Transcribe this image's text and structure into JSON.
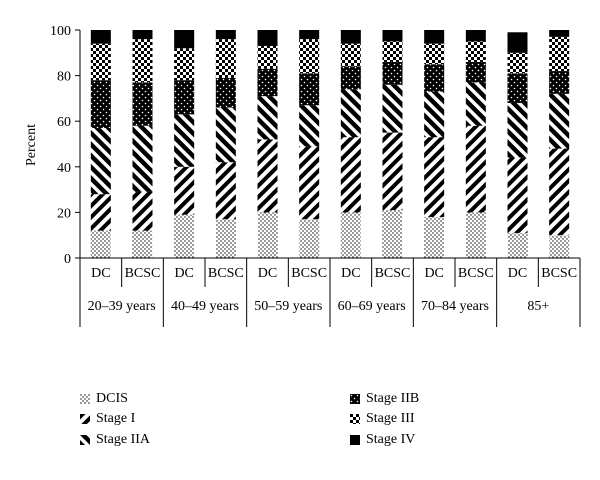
{
  "chart_data": {
    "type": "bar",
    "stacked": true,
    "ylabel": "Percent",
    "ylim": [
      0,
      100
    ],
    "yticks": [
      0,
      20,
      40,
      60,
      80,
      100
    ],
    "groups": [
      "20–39 years",
      "40–49 years",
      "50–59 years",
      "60–69 years",
      "70–84 years",
      "85+"
    ],
    "categories": [
      "DC",
      "BCSC",
      "DC",
      "BCSC",
      "DC",
      "BCSC",
      "DC",
      "BCSC",
      "DC",
      "BCSC",
      "DC",
      "BCSC"
    ],
    "series": [
      {
        "name": "DCIS",
        "pattern": "dots",
        "values": [
          12,
          12,
          19,
          17,
          20,
          17,
          20,
          21,
          18,
          20,
          11,
          10
        ]
      },
      {
        "name": "Stage I",
        "pattern": "stripe-down",
        "values": [
          16,
          17,
          21,
          25,
          32,
          32,
          33,
          34,
          35,
          38,
          33,
          38
        ]
      },
      {
        "name": "Stage IIA",
        "pattern": "stripe-up",
        "values": [
          29,
          29,
          23,
          24,
          19,
          18,
          21,
          21,
          20,
          19,
          24,
          24
        ]
      },
      {
        "name": "Stage IIB",
        "pattern": "dark-dots",
        "values": [
          21,
          19,
          15,
          13,
          12,
          14,
          10,
          10,
          12,
          9,
          13,
          10
        ]
      },
      {
        "name": "Stage III",
        "pattern": "checker",
        "values": [
          16,
          19,
          14,
          17,
          10,
          15,
          10,
          9,
          9,
          9,
          9,
          15
        ]
      },
      {
        "name": "Stage IV",
        "pattern": "solid",
        "values": [
          6,
          4,
          8,
          4,
          7,
          4,
          6,
          5,
          6,
          5,
          9,
          3
        ]
      }
    ],
    "legend_position": "bottom"
  }
}
